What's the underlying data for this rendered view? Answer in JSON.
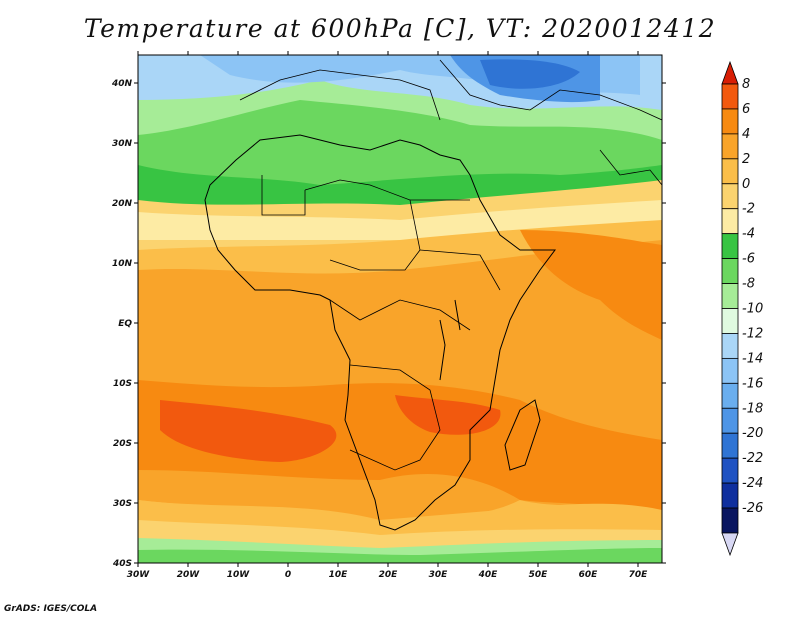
{
  "title": "Temperature at 600hPa [C], VT: 2020012412",
  "credit": "GrADS: IGES/COLA",
  "map": {
    "lon_range": [
      -30,
      75
    ],
    "lat_range": [
      -40,
      45
    ],
    "lon_ticks": [
      "30W",
      "20W",
      "10W",
      "0",
      "10E",
      "20E",
      "30E",
      "40E",
      "50E",
      "60E",
      "70E"
    ],
    "lat_ticks": [
      "40N",
      "30N",
      "20N",
      "10N",
      "EQ",
      "10S",
      "20S",
      "30S",
      "40S"
    ]
  },
  "colorbar": {
    "labels": [
      "8",
      "6",
      "4",
      "2",
      "0",
      "-2",
      "-4",
      "-6",
      "-8",
      "-10",
      "-12",
      "-14",
      "-16",
      "-18",
      "-20",
      "-22",
      "-24",
      "-26"
    ],
    "colors": [
      "#d81e05",
      "#f2590e",
      "#f78a11",
      "#f9a42a",
      "#fbbe49",
      "#fbd36f",
      "#fdeba4",
      "#38c443",
      "#6bd75f",
      "#a6ec97",
      "#e0fae0",
      "#aad6f7",
      "#8cc4f5",
      "#6aaeee",
      "#4e95e6",
      "#2f74d4",
      "#1f52c2",
      "#0f2f9e",
      "#0a1660",
      "#d8d8f4"
    ]
  }
}
